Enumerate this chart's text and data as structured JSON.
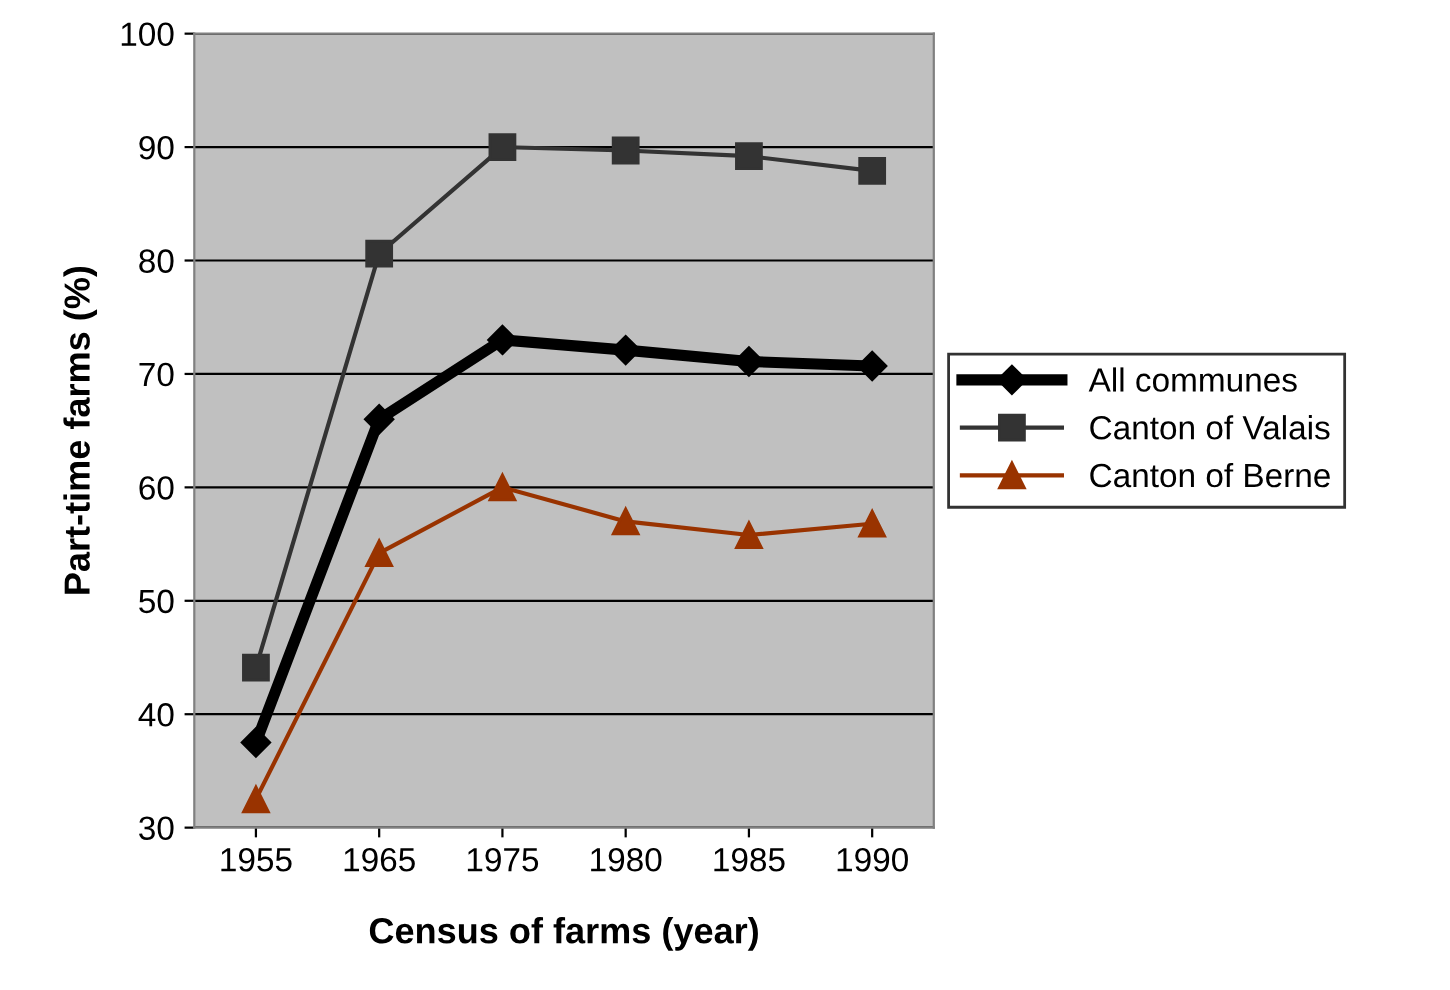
{
  "chart_data": {
    "type": "line",
    "xlabel": "Census of farms (year)",
    "ylabel": "Part-time farms (%)",
    "categories": [
      "1955",
      "1965",
      "1975",
      "1980",
      "1985",
      "1990"
    ],
    "series": [
      {
        "name": "All communes",
        "color": "#000000",
        "marker": "diamond",
        "values": [
          37.5,
          66,
          73,
          72.1,
          71.1,
          70.7
        ]
      },
      {
        "name": "Canton of Valais",
        "color": "#333333",
        "marker": "square",
        "values": [
          44.1,
          80.6,
          90,
          89.7,
          89.2,
          87.9
        ]
      },
      {
        "name": "Canton of Berne",
        "color": "#993300",
        "marker": "triangle",
        "values": [
          32.5,
          54.2,
          60,
          57,
          55.8,
          56.8
        ]
      }
    ],
    "ylim": [
      30,
      100
    ],
    "yticks": [
      30,
      40,
      50,
      60,
      70,
      80,
      90,
      100
    ],
    "grid": "y",
    "legend": "right"
  }
}
